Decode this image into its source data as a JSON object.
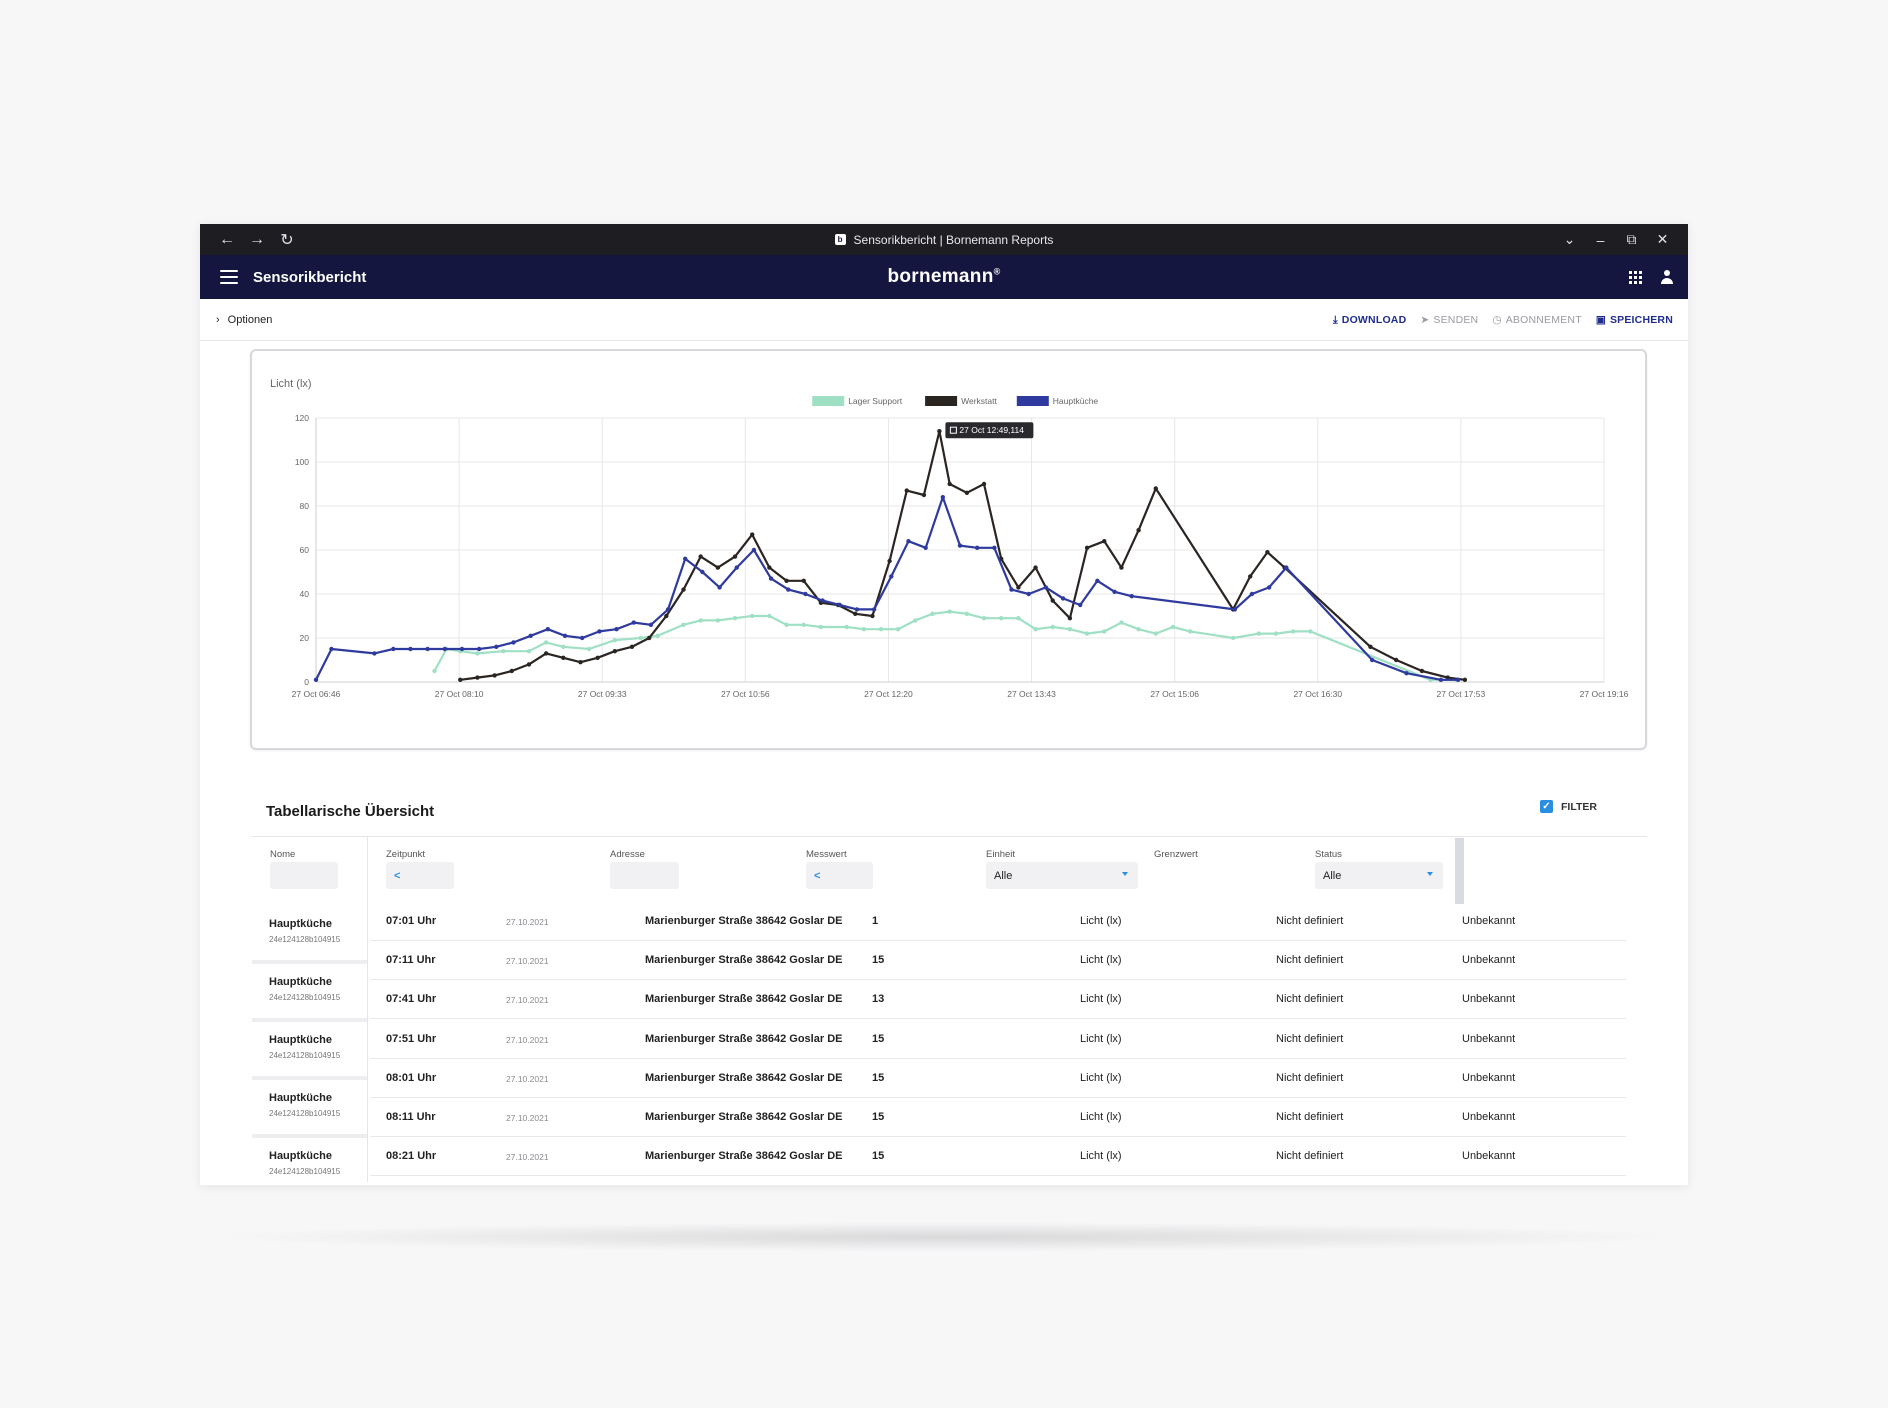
{
  "browser": {
    "tab_title": "Sensorikbericht | Bornemann Reports",
    "favicon_letter": "b"
  },
  "appbar": {
    "title": "Sensorikbericht",
    "logo": "bornemann",
    "logo_mark": "®"
  },
  "options_bar": {
    "options_label": "Optionen",
    "actions": [
      {
        "label": "DOWNLOAD",
        "icon": "download-icon",
        "enabled": true
      },
      {
        "label": "SENDEN",
        "icon": "send-icon",
        "enabled": false
      },
      {
        "label": "ABONNEMENT",
        "icon": "clock-icon",
        "enabled": false
      },
      {
        "label": "SPEICHERN",
        "icon": "save-icon",
        "enabled": true
      }
    ]
  },
  "chart_data": {
    "type": "line",
    "ylabel": "Licht (lx)",
    "ylim": [
      0,
      120
    ],
    "yticks": [
      0,
      20,
      40,
      60,
      80,
      100,
      120
    ],
    "x_tick_labels": [
      "27 Oct 06:46",
      "27 Oct 08:10",
      "27 Oct 09:33",
      "27 Oct 10:56",
      "27 Oct 12:20",
      "27 Oct 13:43",
      "27 Oct 15:06",
      "27 Oct 16:30",
      "27 Oct 17:53",
      "27 Oct 19:16"
    ],
    "xlim": [
      "06:46",
      "19:16"
    ],
    "grid": true,
    "legend_position": "top-center",
    "tooltip": {
      "text": "27 Oct 12:49,114",
      "series": "Werkstatt",
      "x": "12:49",
      "y": 114
    },
    "series": [
      {
        "name": "Lager Support",
        "color": "#9fe0c4",
        "points": [
          [
            "07:55",
            5
          ],
          [
            "08:02",
            15
          ],
          [
            "08:10",
            14
          ],
          [
            "08:20",
            13
          ],
          [
            "08:35",
            14
          ],
          [
            "08:50",
            14
          ],
          [
            "09:00",
            18
          ],
          [
            "09:10",
            16
          ],
          [
            "09:25",
            15
          ],
          [
            "09:40",
            19
          ],
          [
            "09:55",
            20
          ],
          [
            "10:05",
            21
          ],
          [
            "10:20",
            26
          ],
          [
            "10:30",
            28
          ],
          [
            "10:40",
            28
          ],
          [
            "10:50",
            29
          ],
          [
            "11:00",
            30
          ],
          [
            "11:10",
            30
          ],
          [
            "11:20",
            26
          ],
          [
            "11:30",
            26
          ],
          [
            "11:40",
            25
          ],
          [
            "11:55",
            25
          ],
          [
            "12:05",
            24
          ],
          [
            "12:15",
            24
          ],
          [
            "12:25",
            24
          ],
          [
            "12:35",
            28
          ],
          [
            "12:45",
            31
          ],
          [
            "12:55",
            32
          ],
          [
            "13:05",
            31
          ],
          [
            "13:15",
            29
          ],
          [
            "13:25",
            29
          ],
          [
            "13:35",
            29
          ],
          [
            "13:45",
            24
          ],
          [
            "13:55",
            25
          ],
          [
            "14:05",
            24
          ],
          [
            "14:15",
            22
          ],
          [
            "14:25",
            23
          ],
          [
            "14:35",
            27
          ],
          [
            "14:45",
            24
          ],
          [
            "14:55",
            22
          ],
          [
            "15:05",
            25
          ],
          [
            "15:15",
            23
          ],
          [
            "15:40",
            20
          ],
          [
            "15:55",
            22
          ],
          [
            "16:05",
            22
          ],
          [
            "16:15",
            23
          ],
          [
            "16:25",
            23
          ],
          [
            "17:35",
            1
          ],
          [
            "17:50",
            1
          ]
        ]
      },
      {
        "name": "Werkstatt",
        "color": "#2b2522",
        "points": [
          [
            "08:10",
            1
          ],
          [
            "08:20",
            2
          ],
          [
            "08:30",
            3
          ],
          [
            "08:40",
            5
          ],
          [
            "08:50",
            8
          ],
          [
            "09:00",
            13
          ],
          [
            "09:10",
            11
          ],
          [
            "09:20",
            9
          ],
          [
            "09:30",
            11
          ],
          [
            "09:40",
            14
          ],
          [
            "09:50",
            16
          ],
          [
            "10:00",
            20
          ],
          [
            "10:10",
            30
          ],
          [
            "10:20",
            42
          ],
          [
            "10:30",
            57
          ],
          [
            "10:40",
            52
          ],
          [
            "10:50",
            57
          ],
          [
            "11:00",
            67
          ],
          [
            "11:10",
            52
          ],
          [
            "11:20",
            46
          ],
          [
            "11:30",
            46
          ],
          [
            "11:40",
            36
          ],
          [
            "11:50",
            35
          ],
          [
            "12:00",
            31
          ],
          [
            "12:10",
            30
          ],
          [
            "12:20",
            55
          ],
          [
            "12:30",
            87
          ],
          [
            "12:40",
            85
          ],
          [
            "12:49",
            114
          ],
          [
            "12:55",
            90
          ],
          [
            "13:05",
            86
          ],
          [
            "13:15",
            90
          ],
          [
            "13:25",
            56
          ],
          [
            "13:35",
            43
          ],
          [
            "13:45",
            52
          ],
          [
            "13:55",
            37
          ],
          [
            "14:05",
            29
          ],
          [
            "14:15",
            61
          ],
          [
            "14:25",
            64
          ],
          [
            "14:35",
            52
          ],
          [
            "14:45",
            69
          ],
          [
            "14:55",
            88
          ],
          [
            "15:40",
            33
          ],
          [
            "15:50",
            48
          ],
          [
            "16:00",
            59
          ],
          [
            "16:10",
            52
          ],
          [
            "17:00",
            16
          ],
          [
            "17:15",
            10
          ],
          [
            "17:30",
            5
          ],
          [
            "17:45",
            2
          ],
          [
            "17:55",
            1
          ]
        ]
      },
      {
        "name": "Hauptküche",
        "color": "#2f3a9e",
        "points": [
          [
            "06:46",
            1
          ],
          [
            "06:55",
            15
          ],
          [
            "07:20",
            13
          ],
          [
            "07:31",
            15
          ],
          [
            "07:41",
            15
          ],
          [
            "07:51",
            15
          ],
          [
            "08:01",
            15
          ],
          [
            "08:11",
            15
          ],
          [
            "08:21",
            15
          ],
          [
            "08:31",
            16
          ],
          [
            "08:41",
            18
          ],
          [
            "08:51",
            21
          ],
          [
            "09:01",
            24
          ],
          [
            "09:11",
            21
          ],
          [
            "09:21",
            20
          ],
          [
            "09:31",
            23
          ],
          [
            "09:41",
            24
          ],
          [
            "09:51",
            27
          ],
          [
            "10:01",
            26
          ],
          [
            "10:11",
            33
          ],
          [
            "10:21",
            56
          ],
          [
            "10:31",
            50
          ],
          [
            "10:41",
            43
          ],
          [
            "10:51",
            52
          ],
          [
            "11:01",
            60
          ],
          [
            "11:11",
            47
          ],
          [
            "11:21",
            42
          ],
          [
            "11:31",
            40
          ],
          [
            "11:41",
            37
          ],
          [
            "11:51",
            35
          ],
          [
            "12:01",
            33
          ],
          [
            "12:11",
            33
          ],
          [
            "12:21",
            48
          ],
          [
            "12:31",
            64
          ],
          [
            "12:41",
            61
          ],
          [
            "12:51",
            84
          ],
          [
            "13:01",
            62
          ],
          [
            "13:11",
            61
          ],
          [
            "13:21",
            61
          ],
          [
            "13:31",
            42
          ],
          [
            "13:41",
            40
          ],
          [
            "13:51",
            43
          ],
          [
            "14:01",
            38
          ],
          [
            "14:11",
            35
          ],
          [
            "14:21",
            46
          ],
          [
            "14:31",
            41
          ],
          [
            "14:41",
            39
          ],
          [
            "15:41",
            33
          ],
          [
            "15:51",
            40
          ],
          [
            "16:01",
            43
          ],
          [
            "16:11",
            52
          ],
          [
            "17:01",
            10
          ],
          [
            "17:21",
            4
          ],
          [
            "17:41",
            1
          ],
          [
            "17:51",
            1
          ]
        ]
      }
    ]
  },
  "table": {
    "title": "Tabellarische Übersicht",
    "filter_label": "FILTER",
    "headers": {
      "name": "Nome",
      "zeitpunkt": "Zeitpunkt",
      "adresse": "Adresse",
      "messwert": "Messwert",
      "einheit": "Einheit",
      "grenzwert": "Grenzwert",
      "status": "Status"
    },
    "filters": {
      "zeitpunkt_arrow": "<",
      "messwert_arrow": "<",
      "einheit_value": "Alle",
      "status_value": "Alle"
    },
    "name_groups": [
      {
        "name": "Hauptküche",
        "id": "24e124128b104915"
      },
      {
        "name": "Hauptküche",
        "id": "24e124128b104915"
      },
      {
        "name": "Hauptküche",
        "id": "24e124128b104915"
      },
      {
        "name": "Hauptküche",
        "id": "24e124128b104915"
      },
      {
        "name": "Hauptküche",
        "id": "24e124128b104915"
      }
    ],
    "rows": [
      {
        "zeit": "07:01 Uhr",
        "datum": "27.10.2021",
        "adresse": "Marienburger Straße 38642 Goslar DE",
        "wert": "1",
        "einheit": "Licht (lx)",
        "grenzwert": "Nicht definiert",
        "status": "Unbekannt"
      },
      {
        "zeit": "07:11 Uhr",
        "datum": "27.10.2021",
        "adresse": "Marienburger Straße 38642 Goslar DE",
        "wert": "15",
        "einheit": "Licht (lx)",
        "grenzwert": "Nicht definiert",
        "status": "Unbekannt"
      },
      {
        "zeit": "07:41 Uhr",
        "datum": "27.10.2021",
        "adresse": "Marienburger Straße 38642 Goslar DE",
        "wert": "13",
        "einheit": "Licht (lx)",
        "grenzwert": "Nicht definiert",
        "status": "Unbekannt"
      },
      {
        "zeit": "07:51 Uhr",
        "datum": "27.10.2021",
        "adresse": "Marienburger Straße 38642 Goslar DE",
        "wert": "15",
        "einheit": "Licht (lx)",
        "grenzwert": "Nicht definiert",
        "status": "Unbekannt"
      },
      {
        "zeit": "08:01 Uhr",
        "datum": "27.10.2021",
        "adresse": "Marienburger Straße 38642 Goslar DE",
        "wert": "15",
        "einheit": "Licht (lx)",
        "grenzwert": "Nicht definiert",
        "status": "Unbekannt"
      },
      {
        "zeit": "08:11 Uhr",
        "datum": "27.10.2021",
        "adresse": "Marienburger Straße 38642 Goslar DE",
        "wert": "15",
        "einheit": "Licht (lx)",
        "grenzwert": "Nicht definiert",
        "status": "Unbekannt"
      },
      {
        "zeit": "08:21 Uhr",
        "datum": "27.10.2021",
        "adresse": "Marienburger Straße 38642 Goslar DE",
        "wert": "15",
        "einheit": "Licht (lx)",
        "grenzwert": "Nicht definiert",
        "status": "Unbekannt"
      }
    ]
  }
}
